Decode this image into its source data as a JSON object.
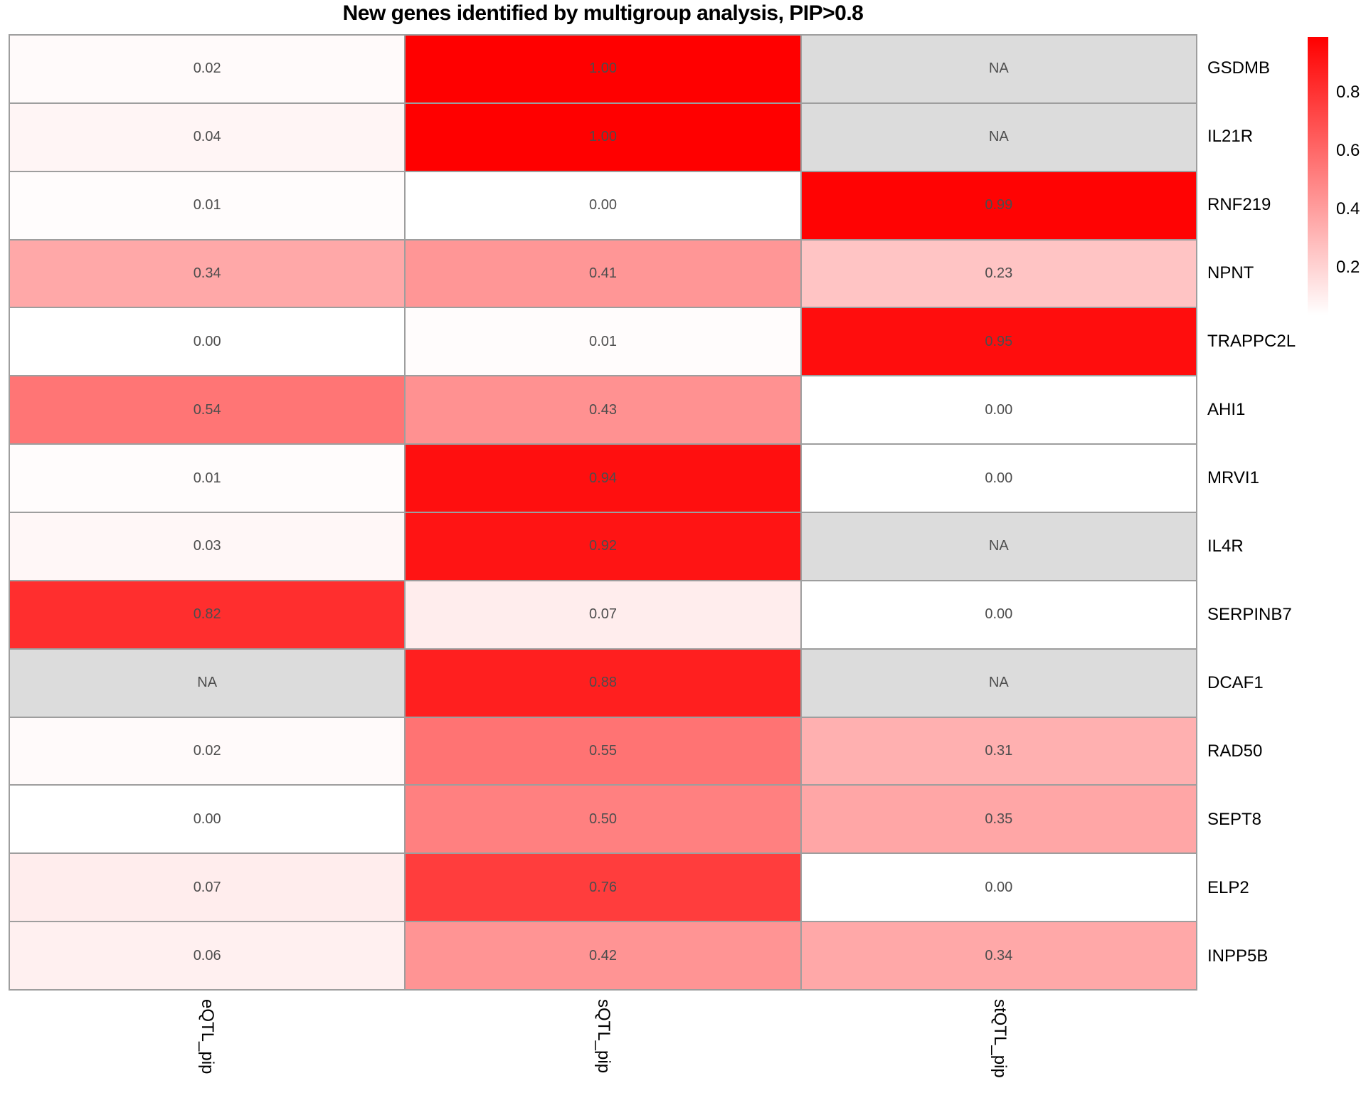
{
  "title": "New genes identified by multigroup analysis, PIP>0.8",
  "chart_data": {
    "type": "heatmap",
    "title": "New genes identified by multigroup analysis, PIP>0.8",
    "columns": [
      "eQTL_pip",
      "sQTL_pip",
      "stQTL_pip"
    ],
    "rows": [
      "GSDMB",
      "IL21R",
      "RNF219",
      "NPNT",
      "TRAPPC2L",
      "AHI1",
      "MRVI1",
      "IL4R",
      "SERPINB7",
      "DCAF1",
      "RAD50",
      "SEPT8",
      "ELP2",
      "INPP5B"
    ],
    "values": [
      [
        0.02,
        1.0,
        null
      ],
      [
        0.04,
        1.0,
        null
      ],
      [
        0.01,
        0.0,
        0.99
      ],
      [
        0.34,
        0.41,
        0.23
      ],
      [
        0.0,
        0.01,
        0.95
      ],
      [
        0.54,
        0.43,
        0.0
      ],
      [
        0.01,
        0.94,
        0.0
      ],
      [
        0.03,
        0.92,
        null
      ],
      [
        0.82,
        0.07,
        0.0
      ],
      [
        null,
        0.88,
        null
      ],
      [
        0.02,
        0.55,
        0.31
      ],
      [
        0.0,
        0.5,
        0.35
      ],
      [
        0.07,
        0.76,
        0.0
      ],
      [
        0.06,
        0.42,
        0.34
      ]
    ],
    "na_label": "NA",
    "value_decimals": 2,
    "grid": true,
    "legend": {
      "position": "right",
      "tick_labels": [
        "0.8",
        "0.6",
        "0.4",
        "0.2"
      ],
      "tick_values": [
        0.8,
        0.6,
        0.4,
        0.2
      ],
      "range": [
        0,
        1
      ],
      "low_color": "#FFFFFF",
      "high_color": "#FF0000",
      "na_color": "#DCDCDC"
    },
    "colors": {
      "cell_text": "#4D4D4D",
      "grid_line": "#9E9E9E",
      "label_text": "#000000"
    }
  }
}
